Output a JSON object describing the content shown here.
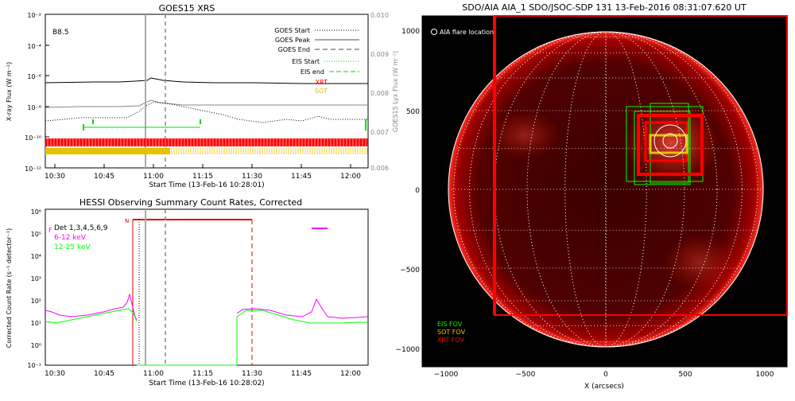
{
  "xrs": {
    "title": "GOES15 XRS",
    "class_label": "B8.5",
    "ylabel": "X-ray Flux (W m⁻²)",
    "ylabel_right": "GOES15 Lyx Flux (W m⁻²)",
    "xlabel": "Start Time (13-Feb-16 10:28:01)",
    "legend": [
      "GOES Start",
      "GOES Peak",
      "GOES End",
      "EIS Start",
      "EIS end",
      "XRT",
      "SOT"
    ],
    "yticks": [
      "10⁻²",
      "10⁻⁴",
      "10⁻⁶",
      "10⁻⁸",
      "10⁻¹⁰",
      "10⁻¹²"
    ],
    "yticks_right": [
      "0.010",
      "0.009",
      "0.008",
      "0.007",
      "0.006"
    ],
    "xticks": [
      "10:30",
      "10:45",
      "11:00",
      "11:15",
      "11:30",
      "11:45",
      "12:00"
    ]
  },
  "hessi": {
    "title": "HESSI Observing Summary Count Rates, Corrected",
    "ylabel": "Corrected Count Rate (s⁻¹ detector⁻¹)",
    "xlabel": "Start Time (13-Feb-16 10:28:02)",
    "legend": [
      "Det 1,3,4,5,6,9",
      "6-12 keV",
      "12-25 keV"
    ],
    "flag_f": "F",
    "flag_n": "N",
    "yticks": [
      "10⁵",
      "10⁴",
      "10³",
      "10²",
      "10¹",
      "10⁰",
      "10⁻¹"
    ],
    "ytop": "10⁶",
    "xticks": [
      "10:30",
      "10:45",
      "11:00",
      "11:15",
      "11:30",
      "11:45",
      "12:00"
    ]
  },
  "aia": {
    "title": "SDO/AIA AIA_1 SDO/JSOC-SDP 131 13-Feb-2016 08:31:07.620 UT",
    "flare_label": "AIA flare location",
    "legend": [
      "EIS FOV",
      "SOT FOV",
      "XRT FOV"
    ],
    "xlabel": "X (arcsecs)",
    "xticks": [
      "−1000",
      "−500",
      "0",
      "500",
      "1000"
    ],
    "yticks": [
      "1000",
      "500",
      "0",
      "−500",
      "−1000"
    ]
  },
  "colors": {
    "xrt": "#ff0000",
    "sot": "#e6c200",
    "eis": "#00ff00",
    "hessi_low": "#ff00ff",
    "hessi_high": "#00ff00"
  },
  "chart_data": [
    {
      "type": "line",
      "title": "GOES15 XRS",
      "xlabel": "Start Time (13-Feb-16 10:28:01)",
      "ylabel": "X-ray Flux (W m⁻²)",
      "yscale": "log",
      "ylim": [
        1e-12,
        0.01
      ],
      "xlim": [
        "10:28",
        "12:06"
      ],
      "series": [
        {
          "name": "",
          "x": [
            "10:28",
            "10:45",
            "10:55",
            "11:00",
            "11:10",
            "11:20",
            "11:35",
            "11:50",
            "12:05"
          ],
          "values": [
            5e-07,
            5.5e-07,
            6e-07,
            8.5e-07,
            7e-07,
            6e-07,
            5.5e-07,
            5.2e-07,
            5e-07
          ]
        },
        {
          "name": "",
          "x": [
            "10:28",
            "10:45",
            "10:55",
            "11:00",
            "11:10",
            "11:20",
            "11:35",
            "11:50",
            "12:05"
          ],
          "values": [
            2.5e-09,
            2.6e-09,
            2.7e-09,
            3.5e-09,
            3e-09,
            2.8e-09,
            2.7e-09,
            2.6e-09,
            2.6e-09
          ]
        }
      ],
      "vlines": {
        "goes_start": "11:02",
        "goes_peak": "11:02",
        "goes_end": "11:06",
        "eis_start": "10:43",
        "eis_end": "11:15"
      }
    },
    {
      "type": "line",
      "title": "HESSI Observing Summary Count Rates, Corrected",
      "xlabel": "Start Time (13-Feb-16 10:28:02)",
      "ylabel": "Corrected Count Rate (s⁻¹ detector⁻¹)",
      "yscale": "log",
      "ylim": [
        0.1,
        1000000.0
      ],
      "series": [
        {
          "name": "6-12 keV",
          "x": [
            "10:28",
            "10:35",
            "10:45",
            "10:52",
            "10:55",
            "10:57",
            "11:29",
            "11:35",
            "11:45",
            "11:52",
            "11:54",
            "12:00",
            "12:06"
          ],
          "values": [
            60,
            28,
            40,
            60,
            200,
            40,
            30,
            35,
            20,
            130,
            40,
            20,
            20
          ]
        },
        {
          "name": "12-25 keV",
          "x": [
            "10:28",
            "10:35",
            "10:45",
            "10:52",
            "10:57",
            "11:29",
            "11:35",
            "11:45",
            "11:55",
            "12:06"
          ],
          "values": [
            13,
            12,
            20,
            25,
            20,
            25,
            30,
            18,
            12,
            11
          ]
        }
      ],
      "vlines": {
        "n_flag": "10:55",
        "goes_start": "11:00",
        "goes_end": "11:06",
        "eis_end": "11:31"
      }
    },
    {
      "type": "image",
      "title": "SDO/AIA AIA_1 SDO/JSOC-SDP 131 13-Feb-2016 08:31:07.620 UT",
      "xlabel": "X (arcsecs)",
      "xlim": [
        -1150,
        1150
      ],
      "ylim": [
        -1100,
        1100
      ],
      "xticks": [
        -1000,
        -500,
        0,
        500,
        1000
      ],
      "yticks": [
        -1000,
        -500,
        0,
        500,
        1000
      ]
    }
  ]
}
